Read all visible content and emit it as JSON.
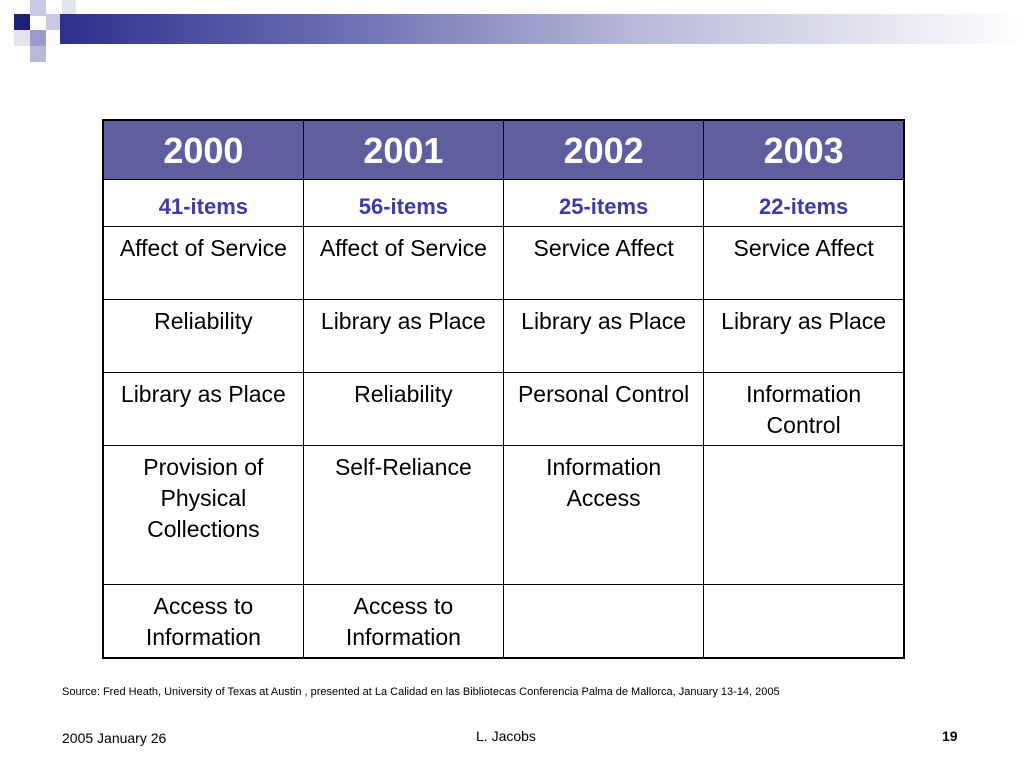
{
  "table": {
    "headers": [
      "2000",
      "2001",
      "2002",
      "2003"
    ],
    "item_counts": [
      "41-items",
      "56-items",
      "25-items",
      "22-items"
    ],
    "rows": [
      [
        "Affect of Service",
        "Affect of Service",
        "Service Affect",
        "Service Affect"
      ],
      [
        "Reliability",
        "Library as Place",
        "Library as Place",
        "Library as Place"
      ],
      [
        "Library as Place",
        "Reliability",
        "Personal Control",
        "Information Control"
      ],
      [
        "Provision of Physical Collections",
        "Self-Reliance",
        "Information Access",
        ""
      ],
      [
        "Access to Information",
        "Access to Information",
        "",
        ""
      ]
    ]
  },
  "source": "Source: Fred Heath, University of Texas at Austin , presented at La Calidad en las Bibliotecas Conferencia Palma de Mallorca, January 13-14, 2005",
  "footer": {
    "date": "2005 January 26",
    "author": "L. Jacobs",
    "page": "19"
  },
  "colors": {
    "header_bg": "#5f5fa0",
    "items_text": "#3b3ba8",
    "accent_dark": "#2d2f8f"
  }
}
